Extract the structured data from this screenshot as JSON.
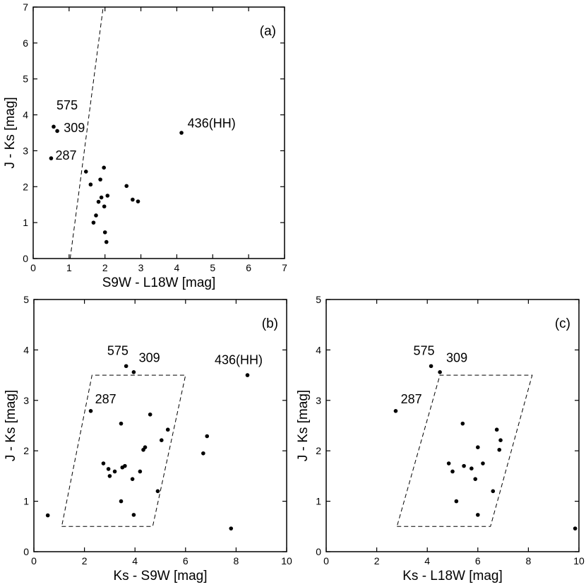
{
  "chart_data": [
    {
      "id": "a",
      "type": "scatter",
      "panel_label": "(a)",
      "xlabel": "S9W - L18W [mag]",
      "ylabel": "J - Ks [mag]",
      "xlim": [
        0,
        7
      ],
      "ylim": [
        0,
        7
      ],
      "xticks": [
        0,
        1,
        2,
        3,
        4,
        5,
        6,
        7
      ],
      "yticks": [
        0,
        1,
        2,
        3,
        4,
        5,
        6,
        7
      ],
      "points": [
        {
          "x": 0.57,
          "y": 3.67
        },
        {
          "x": 0.67,
          "y": 3.55
        },
        {
          "x": 0.5,
          "y": 2.79
        },
        {
          "x": 4.13,
          "y": 3.5
        },
        {
          "x": 1.47,
          "y": 2.42
        },
        {
          "x": 1.97,
          "y": 2.53
        },
        {
          "x": 1.6,
          "y": 2.06
        },
        {
          "x": 1.87,
          "y": 2.2
        },
        {
          "x": 2.6,
          "y": 2.02
        },
        {
          "x": 2.07,
          "y": 1.75
        },
        {
          "x": 1.9,
          "y": 1.7
        },
        {
          "x": 1.82,
          "y": 1.58
        },
        {
          "x": 2.77,
          "y": 1.64
        },
        {
          "x": 2.92,
          "y": 1.59
        },
        {
          "x": 1.98,
          "y": 1.45
        },
        {
          "x": 1.75,
          "y": 1.2
        },
        {
          "x": 1.68,
          "y": 1.0
        },
        {
          "x": 2.0,
          "y": 0.73
        },
        {
          "x": 2.04,
          "y": 0.46
        }
      ],
      "annotations": [
        {
          "text": "575",
          "x": 0.65,
          "y": 4.15
        },
        {
          "text": "309",
          "x": 0.85,
          "y": 3.52
        },
        {
          "text": "287",
          "x": 0.62,
          "y": 2.75
        },
        {
          "text": "436(HH)",
          "x": 4.3,
          "y": 3.65
        }
      ],
      "guides": [
        {
          "kind": "line",
          "points": [
            [
              1.03,
              0
            ],
            [
              1.95,
              7
            ]
          ]
        }
      ]
    },
    {
      "id": "b",
      "type": "scatter",
      "panel_label": "(b)",
      "xlabel": "Ks - S9W [mag]",
      "ylabel": "J - Ks [mag]",
      "xlim": [
        0,
        10
      ],
      "ylim": [
        0,
        5
      ],
      "xticks": [
        0,
        2,
        4,
        6,
        8,
        10
      ],
      "yticks": [
        0,
        1,
        2,
        3,
        4,
        5
      ],
      "points": [
        {
          "x": 0.55,
          "y": 0.72
        },
        {
          "x": 2.25,
          "y": 2.79
        },
        {
          "x": 3.65,
          "y": 3.68
        },
        {
          "x": 3.95,
          "y": 3.56
        },
        {
          "x": 8.45,
          "y": 3.5
        },
        {
          "x": 3.45,
          "y": 2.54
        },
        {
          "x": 4.6,
          "y": 2.72
        },
        {
          "x": 5.3,
          "y": 2.42
        },
        {
          "x": 5.05,
          "y": 2.21
        },
        {
          "x": 6.85,
          "y": 2.29
        },
        {
          "x": 4.4,
          "y": 2.07
        },
        {
          "x": 4.33,
          "y": 2.02
        },
        {
          "x": 6.7,
          "y": 1.95
        },
        {
          "x": 2.75,
          "y": 1.75
        },
        {
          "x": 3.6,
          "y": 1.7
        },
        {
          "x": 3.5,
          "y": 1.67
        },
        {
          "x": 2.95,
          "y": 1.64
        },
        {
          "x": 3.2,
          "y": 1.59
        },
        {
          "x": 4.2,
          "y": 1.59
        },
        {
          "x": 3.0,
          "y": 1.5
        },
        {
          "x": 3.9,
          "y": 1.44
        },
        {
          "x": 4.9,
          "y": 1.2
        },
        {
          "x": 3.45,
          "y": 1.0
        },
        {
          "x": 3.95,
          "y": 0.73
        },
        {
          "x": 7.8,
          "y": 0.46
        }
      ],
      "annotations": [
        {
          "text": "575",
          "x": 2.9,
          "y": 3.9
        },
        {
          "text": "309",
          "x": 4.15,
          "y": 3.76
        },
        {
          "text": "287",
          "x": 2.42,
          "y": 2.94
        },
        {
          "text": "436(HH)",
          "x": 7.15,
          "y": 3.72
        }
      ],
      "guides": [
        {
          "kind": "polygon",
          "points": [
            [
              1.1,
              0.5
            ],
            [
              4.7,
              0.5
            ],
            [
              6.0,
              3.5
            ],
            [
              2.3,
              3.5
            ]
          ]
        }
      ]
    },
    {
      "id": "c",
      "type": "scatter",
      "panel_label": "(c)",
      "xlabel": "Ks - L18W [mag]",
      "ylabel": "J - Ks [mag]",
      "xlim": [
        0,
        10
      ],
      "ylim": [
        0,
        5
      ],
      "xticks": [
        0,
        2,
        4,
        6,
        8,
        10
      ],
      "yticks": [
        0,
        1,
        2,
        3,
        4,
        5
      ],
      "points": [
        {
          "x": 2.75,
          "y": 2.79
        },
        {
          "x": 4.15,
          "y": 3.68
        },
        {
          "x": 4.5,
          "y": 3.56
        },
        {
          "x": 5.4,
          "y": 2.54
        },
        {
          "x": 6.75,
          "y": 2.42
        },
        {
          "x": 6.9,
          "y": 2.21
        },
        {
          "x": 6.85,
          "y": 2.02
        },
        {
          "x": 6.0,
          "y": 2.07
        },
        {
          "x": 6.2,
          "y": 1.75
        },
        {
          "x": 4.85,
          "y": 1.75
        },
        {
          "x": 5.45,
          "y": 1.7
        },
        {
          "x": 5.75,
          "y": 1.65
        },
        {
          "x": 5.0,
          "y": 1.59
        },
        {
          "x": 5.9,
          "y": 1.44
        },
        {
          "x": 6.6,
          "y": 1.2
        },
        {
          "x": 5.15,
          "y": 1.0
        },
        {
          "x": 6.0,
          "y": 0.73
        },
        {
          "x": 9.85,
          "y": 0.46
        }
      ],
      "annotations": [
        {
          "text": "575",
          "x": 3.45,
          "y": 3.9
        },
        {
          "text": "309",
          "x": 4.75,
          "y": 3.76
        },
        {
          "text": "287",
          "x": 2.95,
          "y": 2.94
        }
      ],
      "guides": [
        {
          "kind": "polygon",
          "points": [
            [
              2.8,
              0.5
            ],
            [
              6.5,
              0.5
            ],
            [
              8.15,
              3.5
            ],
            [
              4.5,
              3.5
            ]
          ]
        }
      ]
    }
  ]
}
